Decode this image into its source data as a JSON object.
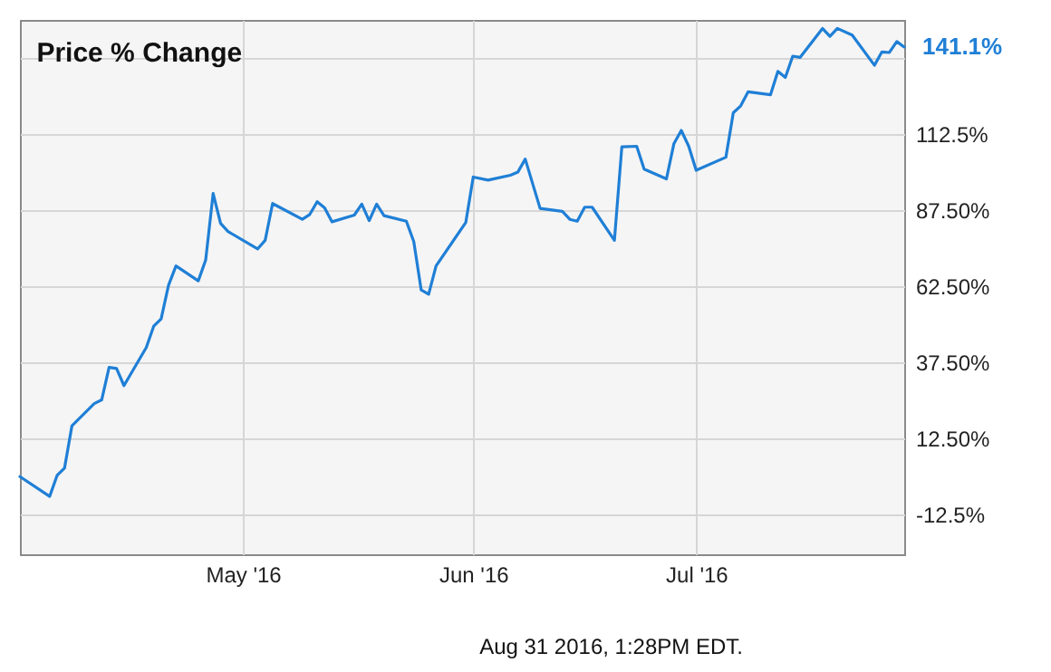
{
  "chart_data": {
    "type": "line",
    "title": "Price % Change",
    "x": [
      "2016-04-01",
      "2016-04-05",
      "2016-04-06",
      "2016-04-07",
      "2016-04-08",
      "2016-04-11",
      "2016-04-12",
      "2016-04-13",
      "2016-04-14",
      "2016-04-15",
      "2016-04-18",
      "2016-04-19",
      "2016-04-20",
      "2016-04-21",
      "2016-04-22",
      "2016-04-25",
      "2016-04-26",
      "2016-04-27",
      "2016-04-28",
      "2016-04-29",
      "2016-05-03",
      "2016-05-04",
      "2016-05-05",
      "2016-05-09",
      "2016-05-10",
      "2016-05-11",
      "2016-05-12",
      "2016-05-13",
      "2016-05-16",
      "2016-05-17",
      "2016-05-18",
      "2016-05-19",
      "2016-05-20",
      "2016-05-23",
      "2016-05-24",
      "2016-05-25",
      "2016-05-26",
      "2016-05-27",
      "2016-05-31",
      "2016-06-01",
      "2016-06-03",
      "2016-06-06",
      "2016-06-07",
      "2016-06-08",
      "2016-06-10",
      "2016-06-13",
      "2016-06-14",
      "2016-06-15",
      "2016-06-16",
      "2016-06-17",
      "2016-06-20",
      "2016-06-21",
      "2016-06-23",
      "2016-06-24",
      "2016-06-27",
      "2016-06-28",
      "2016-06-29",
      "2016-06-30",
      "2016-07-01",
      "2016-07-05",
      "2016-07-06",
      "2016-07-07",
      "2016-07-08",
      "2016-07-11",
      "2016-07-12",
      "2016-07-13",
      "2016-07-14",
      "2016-07-15",
      "2016-07-18",
      "2016-07-19",
      "2016-07-20",
      "2016-07-22",
      "2016-07-25",
      "2016-07-26",
      "2016-07-27",
      "2016-07-28",
      "2016-07-29"
    ],
    "series": [
      {
        "color": "#1f7fd6",
        "values": [
          0,
          -6.5,
          0.4,
          2.8,
          16.7,
          24,
          25.2,
          35.9,
          35.5,
          29.9,
          42.4,
          49.4,
          51.8,
          62.9,
          69.2,
          64.3,
          71.2,
          93,
          83.2,
          80.5,
          74.8,
          77.6,
          89.7,
          84.5,
          86.1,
          90.3,
          88.3,
          83.7,
          85.9,
          89.5,
          84.1,
          89.5,
          85.7,
          83.9,
          77.2,
          61.3,
          59.9,
          69.2,
          83.5,
          98.4,
          97.4,
          99,
          100,
          104.3,
          88.1,
          87.1,
          84.5,
          83.9,
          88.5,
          88.5,
          77.6,
          108.3,
          108.5,
          101,
          97.8,
          109.3,
          113.7,
          108.5,
          100.6,
          104.9,
          119.5,
          121.8,
          126.4,
          125.4,
          133.1,
          131.1,
          138.1,
          137.7,
          147.2,
          144.6,
          147.2,
          145,
          135.1,
          139.5,
          139.3,
          142.9,
          141.1
        ]
      }
    ],
    "xlim": [
      "2016-04-01",
      "2016-07-29"
    ],
    "xticks": [
      {
        "value": "2016-05-01",
        "label": "May '16"
      },
      {
        "value": "2016-06-01",
        "label": "Jun '16"
      },
      {
        "value": "2016-07-01",
        "label": "Jul '16"
      }
    ],
    "ylim": [
      -25.5,
      150
    ],
    "yticks": [
      {
        "value": -12.5,
        "label": "-12.5%"
      },
      {
        "value": 12.5,
        "label": "12.50%"
      },
      {
        "value": 37.5,
        "label": "37.50%"
      },
      {
        "value": 62.5,
        "label": "62.50%"
      },
      {
        "value": 87.5,
        "label": "87.50%"
      },
      {
        "value": 112.5,
        "label": "112.5%"
      },
      {
        "value": 137.5,
        "label": null
      }
    ],
    "grid": true,
    "annotations": [
      {
        "text": "141.1%",
        "x": "2016-07-29",
        "y": 141.1
      },
      "Aug 31 2016, 1:28PM EDT."
    ]
  }
}
